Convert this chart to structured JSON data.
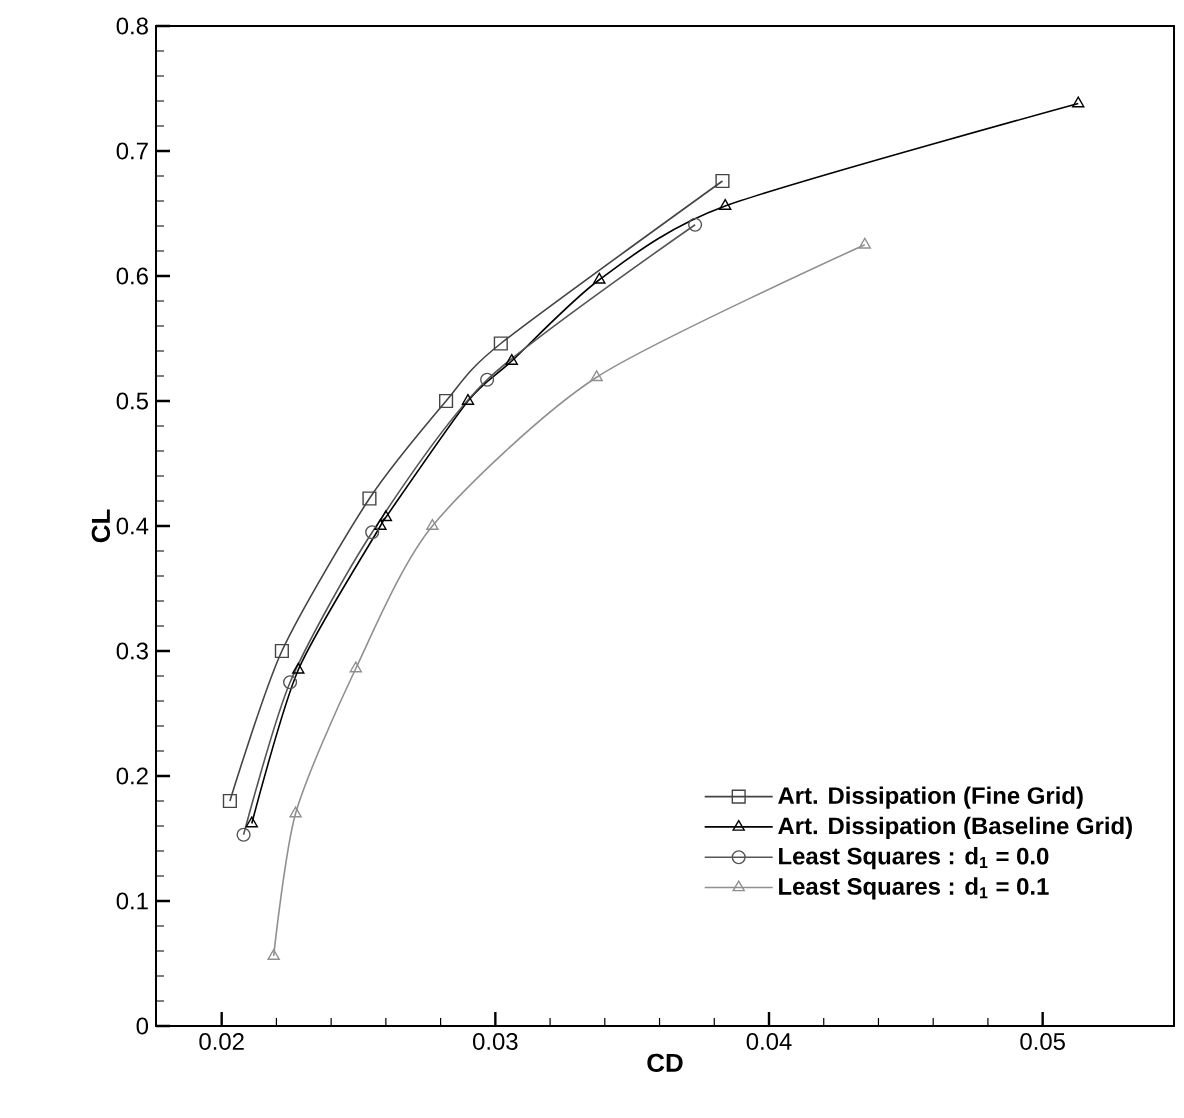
{
  "chart_data": {
    "type": "line",
    "xlabel": "CD",
    "ylabel": "CL",
    "xlim": [
      0.0176,
      0.0548
    ],
    "ylim": [
      0,
      0.8
    ],
    "xticks": [
      0.02,
      0.03,
      0.04,
      0.05
    ],
    "yticks": [
      0,
      0.1,
      0.2,
      0.3,
      0.4,
      0.5,
      0.6,
      0.7,
      0.8
    ],
    "grid": false,
    "legend": "bottom right",
    "series": [
      {
        "name": "Art. Dissipation (Fine Grid)",
        "color": "#444444",
        "marker": "square",
        "x": [
          0.0203,
          0.0222,
          0.0254,
          0.0282,
          0.0302,
          0.0383
        ],
        "values": [
          0.18,
          0.3,
          0.422,
          0.5,
          0.546,
          0.676
        ]
      },
      {
        "name": "Art. Dissipation (Baseline Grid)",
        "color": "#000000",
        "marker": "triangle",
        "x": [
          0.0211,
          0.0228,
          0.0258,
          0.026,
          0.029,
          0.0306,
          0.0338,
          0.0384,
          0.0513
        ],
        "values": [
          0.162,
          0.285,
          0.4,
          0.407,
          0.5,
          0.532,
          0.597,
          0.656,
          0.738
        ]
      },
      {
        "name": "Least Squares : d$_{1}$ = 0.0",
        "color": "#555555",
        "marker": "circle",
        "x": [
          0.0208,
          0.0225,
          0.0255,
          0.0297,
          0.0373
        ],
        "values": [
          0.153,
          0.275,
          0.395,
          0.517,
          0.641
        ]
      },
      {
        "name": "Least Squares : d$_{1}$ = 0.1",
        "color": "#909090",
        "marker": "triangle left",
        "x": [
          0.0219,
          0.0227,
          0.0249,
          0.0277,
          0.0337,
          0.0435
        ],
        "values": [
          0.056,
          0.17,
          0.286,
          0.4,
          0.519,
          0.625
        ]
      }
    ]
  }
}
